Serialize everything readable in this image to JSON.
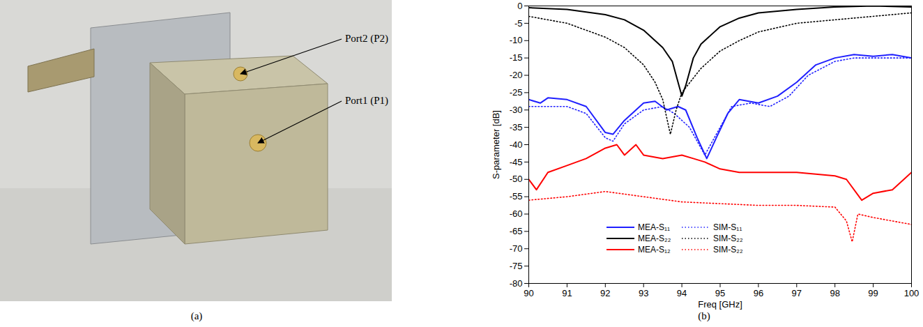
{
  "chart_data": {
    "type": "line",
    "caption": "(b)",
    "xlabel": "Freq [GHz]",
    "ylabel": "S-parameter [dB]",
    "xlim": [
      90,
      100
    ],
    "ylim": [
      -80,
      0
    ],
    "xticks": [
      90,
      91,
      92,
      93,
      94,
      95,
      96,
      97,
      98,
      99,
      100
    ],
    "yticks": [
      -80,
      -75,
      -70,
      -65,
      -60,
      -55,
      -50,
      -45,
      -40,
      -35,
      -30,
      -25,
      -20,
      -15,
      -10,
      -5,
      0
    ],
    "grid": false,
    "legend": "bottom",
    "series": [
      {
        "name": "MEA-S₁₁",
        "color": "#1f1fff",
        "line_style": "solid",
        "x": [
          90,
          90.3,
          90.5,
          91,
          91.5,
          92,
          92.2,
          92.5,
          93,
          93.3,
          93.6,
          93.9,
          94.1,
          94.4,
          94.65,
          94.9,
          95.2,
          95.5,
          96,
          96.5,
          97,
          97.5,
          98,
          98.5,
          99,
          99.5,
          100
        ],
        "values": [
          -27,
          -28,
          -26.5,
          -27,
          -29,
          -36.5,
          -37,
          -33,
          -28,
          -27.5,
          -30,
          -29,
          -30,
          -38,
          -44,
          -38,
          -31,
          -27,
          -28,
          -26,
          -22,
          -17,
          -15,
          -14,
          -14.5,
          -14,
          -15
        ]
      },
      {
        "name": "SIM-S₁₁",
        "color": "#1f1fff",
        "line_style": "dotted",
        "x": [
          90,
          90.5,
          91,
          91.5,
          92,
          92.2,
          92.5,
          93,
          93.5,
          93.8,
          94.2,
          94.6,
          94.9,
          95.3,
          95.8,
          96.3,
          96.8,
          97.3,
          98,
          98.5,
          99,
          100
        ],
        "values": [
          -29,
          -29,
          -29,
          -31,
          -38,
          -39,
          -34,
          -30,
          -29,
          -31,
          -35,
          -43,
          -37,
          -29,
          -28,
          -29,
          -26,
          -20,
          -16,
          -15,
          -15,
          -15
        ]
      },
      {
        "name": "MEA-S₂₂",
        "color": "#000000",
        "line_style": "solid",
        "x": [
          90,
          91,
          92,
          92.5,
          93,
          93.5,
          93.75,
          93.9,
          94,
          94.1,
          94.3,
          94.5,
          95,
          95.5,
          96,
          97,
          98,
          99,
          100
        ],
        "values": [
          -0.5,
          -1,
          -2.5,
          -4,
          -7,
          -12,
          -16,
          -22,
          -26,
          -23,
          -15,
          -11,
          -6,
          -3.5,
          -2,
          -1,
          -0.3,
          0,
          -0.3
        ]
      },
      {
        "name": "SIM-S₂₂",
        "color": "#000000",
        "line_style": "dotted",
        "x": [
          90,
          90.5,
          91,
          91.5,
          92,
          92.5,
          93,
          93.3,
          93.5,
          93.7,
          93.85,
          94,
          94.5,
          95,
          95.5,
          96,
          97,
          98,
          99,
          100
        ],
        "values": [
          -3,
          -4,
          -5,
          -7,
          -9,
          -12,
          -17,
          -22,
          -27,
          -37,
          -30,
          -25,
          -18,
          -13,
          -10,
          -7.5,
          -5,
          -4,
          -3,
          -2
        ]
      },
      {
        "name": "MEA-S₁₂",
        "color": "#ff0000",
        "line_style": "solid",
        "x": [
          90,
          90.2,
          90.5,
          91,
          91.5,
          92,
          92.3,
          92.5,
          92.8,
          93,
          93.5,
          94,
          94.3,
          94.6,
          95,
          95.5,
          96,
          97,
          97.5,
          98,
          98.3,
          98.7,
          99,
          99.5,
          100
        ],
        "values": [
          -50,
          -53,
          -48,
          -46,
          -44,
          -41,
          -40,
          -43,
          -40,
          -43,
          -44,
          -43,
          -44,
          -45,
          -47,
          -48,
          -48,
          -48,
          -48.5,
          -49,
          -50,
          -56,
          -54,
          -53,
          -48
        ]
      },
      {
        "name": "SIM-S₂₂",
        "color": "#ff0000",
        "line_style": "dotted",
        "x": [
          90,
          91,
          92,
          93,
          94,
          95,
          96,
          97,
          98,
          98.3,
          98.45,
          98.6,
          99,
          99.5,
          100
        ],
        "values": [
          -56,
          -55,
          -53.5,
          -55,
          -56.5,
          -57,
          -57.5,
          -57.5,
          -58,
          -62,
          -68,
          -60,
          -61,
          -62,
          -63
        ]
      }
    ]
  },
  "photo": {
    "caption": "(a)",
    "labels": [
      "Port2 (P2)",
      "Port1 (P1)"
    ]
  }
}
